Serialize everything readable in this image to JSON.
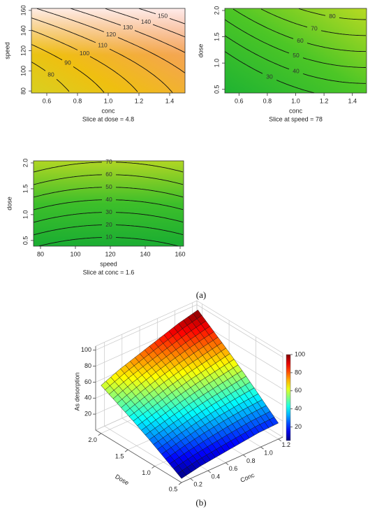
{
  "chart_data": [
    {
      "type": "contour",
      "xlabel": "conc",
      "ylabel": "speed",
      "caption": "Slice at dose = 4.8",
      "xlim": [
        0.5,
        1.5
      ],
      "ylim": [
        78,
        162
      ],
      "xticks": [
        0.6,
        0.8,
        {
          "value": 1,
          "label": "1.0"
        },
        1.2,
        1.4
      ],
      "yticks": [
        80,
        100,
        120,
        140,
        160
      ],
      "levels": [
        80,
        90,
        100,
        110,
        120,
        130,
        140,
        150
      ]
    },
    {
      "type": "contour",
      "xlabel": "conc",
      "ylabel": "dose",
      "caption": "Slice at speed = 78",
      "xlim": [
        0.5,
        1.5
      ],
      "ylim": [
        0.43,
        2.04
      ],
      "xticks": [
        0.6,
        0.8,
        {
          "value": 1,
          "label": "1.0"
        },
        1.2,
        1.4
      ],
      "yticks": [
        0.5,
        {
          "value": 1,
          "label": "1.0"
        },
        1.5,
        {
          "value": 2,
          "label": "2.0"
        }
      ],
      "levels": [
        30,
        40,
        50,
        60,
        70,
        80
      ]
    },
    {
      "type": "contour",
      "xlabel": "speed",
      "ylabel": "dose",
      "caption": "Slice at conc = 1.6",
      "xlim": [
        76,
        162
      ],
      "ylim": [
        0.39,
        2.04
      ],
      "xticks": [
        80,
        100,
        120,
        140,
        160
      ],
      "yticks": [
        0.5,
        {
          "value": 1,
          "label": "1.0"
        },
        1.5,
        {
          "value": 2,
          "label": "2.0"
        }
      ],
      "levels": [
        10,
        20,
        30,
        40,
        50,
        60,
        70
      ]
    },
    {
      "type": "surface3d",
      "xlabel": "Conc",
      "ylabel": "Dose",
      "zlabel": "As desorption",
      "x": [
        0.1,
        0.32,
        0.54,
        0.76,
        0.98,
        1.2
      ],
      "y": [
        0.5,
        0.8,
        1.1,
        1.4,
        1.7,
        2.0
      ],
      "z": [
        [
          5,
          10,
          13,
          16,
          19,
          20
        ],
        [
          17,
          23,
          28,
          32,
          35,
          37
        ],
        [
          29,
          35,
          41,
          46,
          50,
          54
        ],
        [
          40,
          47,
          54,
          60,
          65,
          70
        ],
        [
          50,
          59,
          67,
          74,
          80,
          85
        ],
        [
          60,
          70,
          78,
          86,
          94,
          100
        ]
      ],
      "xlim": [
        0.1,
        1.25
      ],
      "ylim": [
        0.5,
        2.1
      ],
      "zlim": [
        0,
        105
      ],
      "xticks": [
        0.2,
        0.4,
        0.6,
        0.8,
        {
          "value": 1,
          "label": "1.0"
        },
        1.2
      ],
      "yticks": [
        0.5,
        {
          "value": 1,
          "label": "1.0"
        },
        1.5,
        {
          "value": 2,
          "label": "2.0"
        }
      ],
      "zticks": [
        20,
        40,
        60,
        80,
        100
      ],
      "colorbar_ticks": [
        20,
        40,
        60,
        80,
        100
      ]
    }
  ],
  "panel_labels": [
    "(a)",
    "(b)"
  ]
}
